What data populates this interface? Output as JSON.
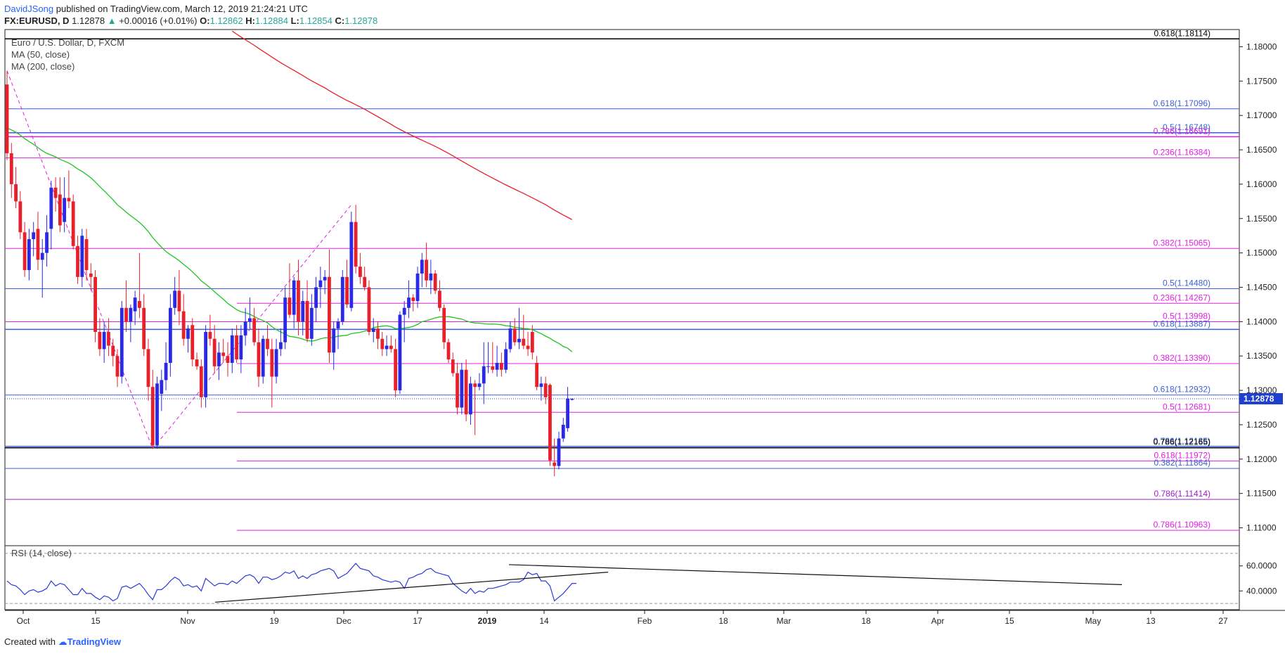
{
  "header": {
    "user": "DavidJSong",
    "published_text": "published on TradingView.com, March 12, 2019 21:24:21 UTC",
    "symbol": "FX:EURUSD, D",
    "last": "1.12878",
    "change_arrow": "▲",
    "change": "+0.00016 (+0.01%)",
    "o_key": "O:",
    "o_val": "1.12862",
    "h_key": "H:",
    "h_val": "1.12884",
    "l_key": "L:",
    "l_val": "1.12854",
    "c_key": "C:",
    "c_val": "1.12878"
  },
  "legend": {
    "title": "Euro / U.S. Dollar, D, FXCM",
    "ma50": "MA (50, close)",
    "ma200": "MA (200, close)",
    "rsi": "RSI (14, close)"
  },
  "footer": {
    "created_with": "Created with",
    "brand": "TradingView"
  },
  "colors": {
    "up": "#2929e6",
    "down": "#e8202a",
    "ma50": "#22c422",
    "ma200": "#e8202a",
    "fib_blue": "#3a5fd6",
    "fib_magenta": "#e020e0",
    "rsi": "#2b3bd8",
    "price_tag": "#1f3fd1"
  },
  "chart_data": {
    "type": "candlestick",
    "price_axis": {
      "ylim": [
        1.1075,
        1.1825
      ],
      "ticks": [
        "1.18000",
        "1.17500",
        "1.17000",
        "1.16500",
        "1.16000",
        "1.15500",
        "1.15000",
        "1.14500",
        "1.14000",
        "1.13500",
        "1.13000",
        "1.12500",
        "1.12000",
        "1.11500",
        "1.11000"
      ],
      "current_price_tag": "1.12878",
      "current_price": 1.12878
    },
    "time_axis": {
      "labels": [
        "Oct",
        "15",
        "Nov",
        "19",
        "Dec",
        "17",
        "2019",
        "14",
        "Feb",
        "18",
        "Mar",
        "18",
        "Apr",
        "15",
        "May",
        "13",
        "27"
      ],
      "bold": [
        "2019"
      ]
    },
    "fib_levels": [
      {
        "label": "0.618(1.18114)",
        "value": 1.18114,
        "color": "#000000",
        "start": "full",
        "width": 1.5
      },
      {
        "label": "0.618(1.17096)",
        "value": 1.17096,
        "color": "#3a5fd6",
        "start": "full"
      },
      {
        "label": "0.5(1.16748)",
        "value": 1.16748,
        "color": "#3a5fd6",
        "start": "full",
        "width": 1.5
      },
      {
        "label": "0.786(1.16691)",
        "value": 1.16691,
        "color": "#e020e0",
        "start": "full",
        "width": 1.5
      },
      {
        "label": "0.236(1.16384)",
        "value": 1.16384,
        "color": "#e020e0",
        "start": "full"
      },
      {
        "label": "0.382(1.15065)",
        "value": 1.15065,
        "color": "#e020e0",
        "start": "full"
      },
      {
        "label": "0.5(1.14480)",
        "value": 1.1448,
        "color": "#3a5fd6",
        "start": "full"
      },
      {
        "label": "0.236(1.14267)",
        "value": 1.14267,
        "color": "#e020e0",
        "start": "nov"
      },
      {
        "label": "0.5(1.13998)",
        "value": 1.13998,
        "color": "#e020e0",
        "start": "full"
      },
      {
        "label": "0.618(1.13887)",
        "value": 1.13887,
        "color": "#3a5fd6",
        "start": "full",
        "width": 1.5
      },
      {
        "label": "0.382(1.13390)",
        "value": 1.1339,
        "color": "#e020e0",
        "start": "nov"
      },
      {
        "label": "0.618(1.12932)",
        "value": 1.12932,
        "color": "#3a5fd6",
        "start": "full"
      },
      {
        "label": "0.5(1.12681)",
        "value": 1.12681,
        "color": "#e020e0",
        "start": "nov"
      },
      {
        "label": "0.786(1.12185)",
        "value": 1.12185,
        "color": "#3a5fd6",
        "start": "full",
        "width": 1.5
      },
      {
        "label": "0.786(1.12165)",
        "value": 1.12165,
        "color": "#000000",
        "start": "full",
        "width": 1.5
      },
      {
        "label": "0.618(1.11972)",
        "value": 1.11972,
        "color": "#e020e0",
        "start": "nov"
      },
      {
        "label": "0.382(1.11864)",
        "value": 1.11864,
        "color": "#3a5fd6",
        "start": "full"
      },
      {
        "label": "0.786(1.11414)",
        "value": 1.11414,
        "color": "#9a20c8",
        "start": "full"
      },
      {
        "label": "0.786(1.10963)",
        "value": 1.10963,
        "color": "#e020e0",
        "start": "nov"
      }
    ],
    "candles": [
      [
        1.1745,
        1.1765,
        1.1635,
        1.1645
      ],
      [
        1.1645,
        1.166,
        1.158,
        1.16
      ],
      [
        1.16,
        1.1625,
        1.1565,
        1.1575
      ],
      [
        1.1575,
        1.159,
        1.152,
        1.153
      ],
      [
        1.153,
        1.1545,
        1.1465,
        1.1475
      ],
      [
        1.1475,
        1.1535,
        1.146,
        1.152
      ],
      [
        1.152,
        1.1545,
        1.1495,
        1.153
      ],
      [
        1.1535,
        1.156,
        1.1475,
        1.149
      ],
      [
        1.149,
        1.152,
        1.1435,
        1.15
      ],
      [
        1.15,
        1.1555,
        1.148,
        1.153
      ],
      [
        1.1535,
        1.1605,
        1.1505,
        1.1595
      ],
      [
        1.1595,
        1.161,
        1.156,
        1.158
      ],
      [
        1.1585,
        1.161,
        1.153,
        1.154
      ],
      [
        1.1545,
        1.161,
        1.153,
        1.158
      ],
      [
        1.158,
        1.162,
        1.1565,
        1.1575
      ],
      [
        1.1575,
        1.1585,
        1.1505,
        1.151
      ],
      [
        1.151,
        1.1525,
        1.1455,
        1.1465
      ],
      [
        1.1465,
        1.1535,
        1.145,
        1.1525
      ],
      [
        1.152,
        1.1535,
        1.146,
        1.1475
      ],
      [
        1.147,
        1.1485,
        1.1445,
        1.1465
      ],
      [
        1.1465,
        1.1475,
        1.137,
        1.1385
      ],
      [
        1.1385,
        1.1405,
        1.135,
        1.136
      ],
      [
        1.136,
        1.14,
        1.134,
        1.1385
      ],
      [
        1.1385,
        1.1405,
        1.135,
        1.1365
      ],
      [
        1.1365,
        1.1375,
        1.1335,
        1.135
      ],
      [
        1.135,
        1.136,
        1.1305,
        1.132
      ],
      [
        1.132,
        1.143,
        1.131,
        1.142
      ],
      [
        1.142,
        1.146,
        1.1385,
        1.14
      ],
      [
        1.14,
        1.1425,
        1.137,
        1.142
      ],
      [
        1.1415,
        1.1445,
        1.1395,
        1.1435
      ],
      [
        1.143,
        1.15,
        1.1405,
        1.142
      ],
      [
        1.142,
        1.144,
        1.135,
        1.136
      ],
      [
        1.136,
        1.1375,
        1.1285,
        1.1305
      ],
      [
        1.1305,
        1.133,
        1.1215,
        1.122
      ],
      [
        1.122,
        1.132,
        1.1215,
        1.131
      ],
      [
        1.1295,
        1.133,
        1.127,
        1.1315
      ],
      [
        1.1315,
        1.137,
        1.13,
        1.134
      ],
      [
        1.134,
        1.144,
        1.132,
        1.142
      ],
      [
        1.142,
        1.1465,
        1.141,
        1.1445
      ],
      [
        1.1445,
        1.1475,
        1.1395,
        1.1415
      ],
      [
        1.1415,
        1.144,
        1.1365,
        1.1375
      ],
      [
        1.1375,
        1.1395,
        1.1355,
        1.139
      ],
      [
        1.1395,
        1.1405,
        1.1335,
        1.1345
      ],
      [
        1.1345,
        1.1355,
        1.133,
        1.1335
      ],
      [
        1.1335,
        1.1345,
        1.1275,
        1.129
      ],
      [
        1.129,
        1.1395,
        1.1275,
        1.1385
      ],
      [
        1.1385,
        1.141,
        1.1365,
        1.1375
      ],
      [
        1.1375,
        1.1395,
        1.1325,
        1.1335
      ],
      [
        1.1335,
        1.137,
        1.1315,
        1.1355
      ],
      [
        1.1355,
        1.1375,
        1.134,
        1.135
      ],
      [
        1.135,
        1.137,
        1.132,
        1.134
      ],
      [
        1.134,
        1.139,
        1.1325,
        1.138
      ],
      [
        1.138,
        1.1395,
        1.134,
        1.1345
      ],
      [
        1.1345,
        1.1395,
        1.1325,
        1.138
      ],
      [
        1.138,
        1.142,
        1.1365,
        1.14
      ],
      [
        1.14,
        1.1435,
        1.139,
        1.1405
      ],
      [
        1.1405,
        1.142,
        1.1365,
        1.137
      ],
      [
        1.137,
        1.139,
        1.1305,
        1.132
      ],
      [
        1.132,
        1.138,
        1.131,
        1.1375
      ],
      [
        1.1375,
        1.1395,
        1.135,
        1.136
      ],
      [
        1.136,
        1.1375,
        1.1275,
        1.132
      ],
      [
        1.132,
        1.1375,
        1.131,
        1.136
      ],
      [
        1.136,
        1.139,
        1.135,
        1.137
      ],
      [
        1.137,
        1.145,
        1.136,
        1.1435
      ],
      [
        1.1435,
        1.1485,
        1.1405,
        1.141
      ],
      [
        1.141,
        1.1465,
        1.139,
        1.146
      ],
      [
        1.146,
        1.149,
        1.138,
        1.14
      ],
      [
        1.14,
        1.1445,
        1.138,
        1.143
      ],
      [
        1.143,
        1.146,
        1.137,
        1.1375
      ],
      [
        1.1375,
        1.144,
        1.1365,
        1.142
      ],
      [
        1.142,
        1.1465,
        1.14,
        1.145
      ],
      [
        1.145,
        1.148,
        1.142,
        1.146
      ],
      [
        1.146,
        1.1475,
        1.144,
        1.1465
      ],
      [
        1.1465,
        1.1505,
        1.134,
        1.1355
      ],
      [
        1.1355,
        1.14,
        1.133,
        1.139
      ],
      [
        1.139,
        1.1405,
        1.136,
        1.14
      ],
      [
        1.14,
        1.1475,
        1.1395,
        1.1465
      ],
      [
        1.1465,
        1.149,
        1.142,
        1.1425
      ],
      [
        1.142,
        1.156,
        1.1415,
        1.1545
      ],
      [
        1.1545,
        1.157,
        1.147,
        1.148
      ],
      [
        1.148,
        1.15,
        1.1455,
        1.1465
      ],
      [
        1.1465,
        1.148,
        1.1445,
        1.145
      ],
      [
        1.145,
        1.146,
        1.138,
        1.1385
      ],
      [
        1.1385,
        1.1405,
        1.137,
        1.139
      ],
      [
        1.139,
        1.14,
        1.136,
        1.1375
      ],
      [
        1.1375,
        1.1385,
        1.135,
        1.136
      ],
      [
        1.136,
        1.138,
        1.135,
        1.1365
      ],
      [
        1.1365,
        1.138,
        1.1355,
        1.136
      ],
      [
        1.136,
        1.1375,
        1.129,
        1.13
      ],
      [
        1.13,
        1.1415,
        1.1295,
        1.141
      ],
      [
        1.141,
        1.143,
        1.137,
        1.142
      ],
      [
        1.142,
        1.146,
        1.1405,
        1.1435
      ],
      [
        1.1435,
        1.144,
        1.1415,
        1.143
      ],
      [
        1.143,
        1.148,
        1.142,
        1.147
      ],
      [
        1.147,
        1.15,
        1.145,
        1.149
      ],
      [
        1.149,
        1.1515,
        1.145,
        1.146
      ],
      [
        1.146,
        1.149,
        1.144,
        1.147
      ],
      [
        1.147,
        1.1475,
        1.144,
        1.1445
      ],
      [
        1.1445,
        1.146,
        1.1415,
        1.142
      ],
      [
        1.142,
        1.1425,
        1.136,
        1.137
      ],
      [
        1.137,
        1.1375,
        1.134,
        1.1345
      ],
      [
        1.1345,
        1.1355,
        1.132,
        1.1325
      ],
      [
        1.1325,
        1.134,
        1.1265,
        1.1275
      ],
      [
        1.1275,
        1.134,
        1.1265,
        1.133
      ],
      [
        1.133,
        1.1345,
        1.1255,
        1.1265
      ],
      [
        1.1265,
        1.132,
        1.125,
        1.131
      ],
      [
        1.131,
        1.1315,
        1.1235,
        1.1305
      ],
      [
        1.1305,
        1.1325,
        1.13,
        1.131
      ],
      [
        1.131,
        1.137,
        1.128,
        1.1335
      ],
      [
        1.1335,
        1.137,
        1.1325,
        1.1335
      ],
      [
        1.1335,
        1.137,
        1.1325,
        1.133
      ],
      [
        1.133,
        1.1365,
        1.132,
        1.134
      ],
      [
        1.134,
        1.1355,
        1.132,
        1.133
      ],
      [
        1.133,
        1.137,
        1.1325,
        1.136
      ],
      [
        1.136,
        1.14,
        1.1355,
        1.139
      ],
      [
        1.139,
        1.1405,
        1.1365,
        1.137
      ],
      [
        1.137,
        1.142,
        1.136,
        1.1375
      ],
      [
        1.1375,
        1.141,
        1.136,
        1.1365
      ],
      [
        1.1365,
        1.1385,
        1.135,
        1.136
      ],
      [
        1.1385,
        1.1395,
        1.1345,
        1.1355
      ],
      [
        1.134,
        1.135,
        1.13,
        1.1305
      ],
      [
        1.1305,
        1.132,
        1.1285,
        1.131
      ],
      [
        1.131,
        1.132,
        1.128,
        1.129
      ],
      [
        1.1308,
        1.131,
        1.119,
        1.1198
      ],
      [
        1.1195,
        1.123,
        1.1175,
        1.119
      ],
      [
        1.119,
        1.124,
        1.1185,
        1.123
      ],
      [
        1.123,
        1.126,
        1.1225,
        1.125
      ],
      [
        1.1245,
        1.1305,
        1.124,
        1.1288
      ],
      [
        1.12862,
        1.12884,
        1.12854,
        1.12878
      ]
    ],
    "rsi": {
      "name": "RSI (14, close)",
      "ylim": [
        25,
        75
      ],
      "ticks": [
        "60.0000",
        "40.0000"
      ],
      "guides": [
        70,
        30
      ],
      "values": [
        48,
        45,
        44,
        41,
        37,
        40,
        41,
        39,
        40,
        42,
        48,
        44,
        46,
        45,
        41,
        37,
        37,
        42,
        38,
        38,
        35,
        33,
        36,
        35,
        32,
        34,
        43,
        44,
        42,
        44,
        46,
        42,
        37,
        33,
        41,
        41,
        44,
        48,
        51,
        49,
        44,
        45,
        43,
        44,
        40,
        50,
        47,
        44,
        46,
        46,
        45,
        48,
        46,
        49,
        52,
        53,
        51,
        46,
        51,
        51,
        49,
        50,
        52,
        55,
        54,
        56,
        50,
        52,
        50,
        53,
        54,
        56,
        57,
        58,
        56,
        50,
        52,
        54,
        58,
        62,
        58,
        57,
        56,
        52,
        51,
        49,
        48,
        47,
        48,
        47,
        42,
        50,
        51,
        53,
        54,
        57,
        58,
        55,
        54,
        53,
        52,
        46,
        43,
        40,
        38,
        42,
        38,
        40,
        39,
        42,
        42,
        43,
        44,
        45,
        47,
        47,
        47,
        49,
        55,
        53,
        54,
        48,
        48,
        44,
        32,
        35,
        38,
        42,
        46,
        46
      ]
    }
  }
}
